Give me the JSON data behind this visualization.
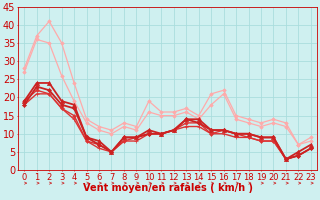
{
  "title": "",
  "xlabel": "Vent moyen/en rafales ( km/h )",
  "bg_color": "#cff0f0",
  "grid_color": "#aadddd",
  "xlim": [
    -0.5,
    23.5
  ],
  "ylim": [
    0,
    45
  ],
  "yticks": [
    0,
    5,
    10,
    15,
    20,
    25,
    30,
    35,
    40,
    45
  ],
  "xticks": [
    0,
    1,
    2,
    3,
    4,
    5,
    6,
    7,
    8,
    9,
    10,
    11,
    12,
    13,
    14,
    15,
    16,
    17,
    18,
    19,
    20,
    21,
    22,
    23
  ],
  "series": [
    {
      "x": [
        0,
        1,
        2,
        3,
        4,
        5,
        6,
        7,
        8,
        9,
        10,
        11,
        12,
        13,
        14,
        15,
        16,
        17,
        18,
        19,
        20,
        21,
        22,
        23
      ],
      "y": [
        28,
        37,
        41,
        35,
        24,
        14,
        12,
        11,
        13,
        12,
        19,
        16,
        16,
        17,
        15,
        21,
        22,
        15,
        14,
        13,
        14,
        13,
        7,
        9
      ],
      "color": "#ffaaaa",
      "lw": 0.9,
      "marker": "D",
      "ms": 1.8,
      "zorder": 2
    },
    {
      "x": [
        0,
        1,
        2,
        3,
        4,
        5,
        6,
        7,
        8,
        9,
        10,
        11,
        12,
        13,
        14,
        15,
        16,
        17,
        18,
        19,
        20,
        21,
        22,
        23
      ],
      "y": [
        27,
        36,
        35,
        26,
        19,
        13,
        11,
        10,
        12,
        11,
        16,
        15,
        15,
        16,
        14,
        18,
        21,
        14,
        13,
        12,
        13,
        12,
        7,
        8
      ],
      "color": "#ffaaaa",
      "lw": 0.9,
      "marker": "D",
      "ms": 1.8,
      "zorder": 2
    },
    {
      "x": [
        0,
        1,
        2,
        3,
        4,
        5,
        6,
        7,
        8,
        9,
        10,
        11,
        12,
        13,
        14,
        15,
        16,
        17,
        18,
        19,
        20,
        21,
        22,
        23
      ],
      "y": [
        19,
        24,
        24,
        19,
        18,
        9,
        8,
        5,
        9,
        9,
        11,
        10,
        11,
        14,
        14,
        11,
        11,
        10,
        10,
        9,
        9,
        3,
        5,
        7
      ],
      "color": "#cc2222",
      "lw": 1.3,
      "marker": "^",
      "ms": 3.0,
      "zorder": 4
    },
    {
      "x": [
        0,
        1,
        2,
        3,
        4,
        5,
        6,
        7,
        8,
        9,
        10,
        11,
        12,
        13,
        14,
        15,
        16,
        17,
        18,
        19,
        20,
        21,
        22,
        23
      ],
      "y": [
        18,
        23,
        22,
        18,
        17,
        9,
        7,
        5,
        9,
        9,
        10,
        10,
        11,
        14,
        13,
        11,
        11,
        10,
        10,
        9,
        9,
        3,
        4,
        6
      ],
      "color": "#cc2222",
      "lw": 1.3,
      "marker": "D",
      "ms": 2.0,
      "zorder": 4
    },
    {
      "x": [
        0,
        1,
        2,
        3,
        4,
        5,
        6,
        7,
        8,
        9,
        10,
        11,
        12,
        13,
        14,
        15,
        16,
        17,
        18,
        19,
        20,
        21,
        22,
        23
      ],
      "y": [
        19,
        22,
        21,
        17,
        15,
        8,
        7,
        5,
        8,
        9,
        10,
        10,
        11,
        13,
        13,
        10,
        11,
        10,
        9,
        8,
        8,
        3,
        4,
        6
      ],
      "color": "#dd3333",
      "lw": 1.0,
      "marker": "D",
      "ms": 1.8,
      "zorder": 3
    },
    {
      "x": [
        0,
        1,
        2,
        3,
        4,
        5,
        6,
        7,
        8,
        9,
        10,
        11,
        12,
        13,
        14,
        15,
        16,
        17,
        18,
        19,
        20,
        21,
        22,
        23
      ],
      "y": [
        18,
        21,
        21,
        17,
        14,
        8,
        6,
        5,
        8,
        8,
        10,
        10,
        11,
        12,
        12,
        10,
        10,
        9,
        9,
        8,
        8,
        3,
        4,
        6
      ],
      "color": "#dd3333",
      "lw": 1.0,
      "marker": "+",
      "ms": 2.5,
      "zorder": 3
    }
  ],
  "arrow_color": "#cc2222",
  "xlabel_color": "#cc0000",
  "xlabel_fontsize": 7,
  "tick_fontsize": 6,
  "tick_color": "#cc0000",
  "ytick_fontsize": 7
}
